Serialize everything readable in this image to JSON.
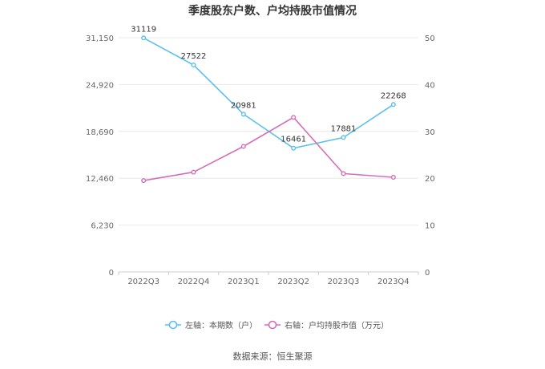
{
  "chart_data": {
    "type": "line",
    "title": "季度股东户数、户均持股市值情况",
    "categories": [
      "2022Q3",
      "2022Q4",
      "2023Q1",
      "2023Q2",
      "2023Q3",
      "2023Q4"
    ],
    "series": [
      {
        "name": "左轴：本期数（户）",
        "axis": "left",
        "color": "#5bc0eb",
        "values": [
          31119,
          27522,
          20981,
          16461,
          17881,
          22268
        ],
        "labels": [
          "31119",
          "27522",
          "20981",
          "16461",
          "17881",
          "22268"
        ]
      },
      {
        "name": "右轴：户均持股市值（万元）",
        "axis": "right",
        "color": "#d36fba",
        "values": [
          19.5,
          21.3,
          26.8,
          33.0,
          21.0,
          20.2
        ]
      }
    ],
    "left_axis": {
      "range": [
        0,
        31150
      ],
      "ticks": [
        0,
        6230,
        12460,
        18690,
        24920,
        31150
      ],
      "tick_labels": [
        "0",
        "6,230",
        "12,460",
        "18,690",
        "24,920",
        "31,150"
      ]
    },
    "right_axis": {
      "range": [
        0,
        50
      ],
      "ticks": [
        0,
        10,
        20,
        30,
        40,
        50
      ],
      "tick_labels": [
        "0",
        "10",
        "20",
        "30",
        "40",
        "50"
      ]
    },
    "grid": true,
    "legend_position": "bottom"
  },
  "source_text": "数据来源：恒生聚源"
}
